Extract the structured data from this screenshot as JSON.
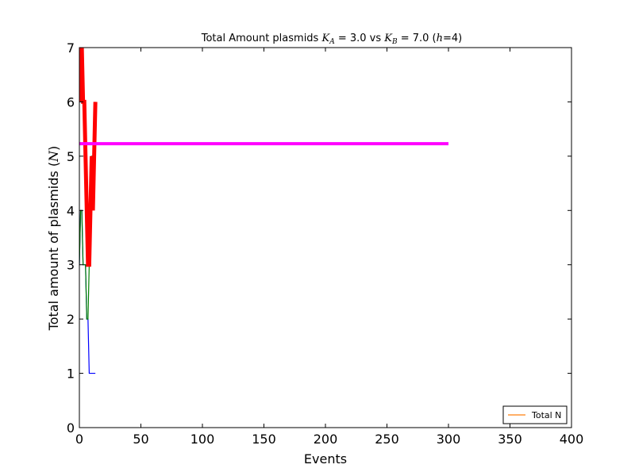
{
  "chart_data": {
    "type": "line",
    "title": {
      "prefix": "Total Amount plasmids ",
      "ka_symbol": "K",
      "ka_sub": "A",
      "ka_value": " = 3.0 vs ",
      "kb_symbol": "K",
      "kb_sub": "B",
      "kb_value": " = 7.0 (",
      "h_symbol": "h",
      "h_value": "=4)"
    },
    "xlabel": "Events",
    "ylabel_prefix": "Total amount of plasmids (",
    "ylabel_symbol": "N",
    "ylabel_suffix": ")",
    "xlim": [
      0,
      400
    ],
    "ylim": [
      0,
      7
    ],
    "xticks": [
      "0",
      "50",
      "100",
      "150",
      "200",
      "250",
      "300",
      "350",
      "400"
    ],
    "yticks": [
      "0",
      "1",
      "2",
      "3",
      "4",
      "5",
      "6",
      "7"
    ],
    "grid": false,
    "legend_position": "lower-right",
    "legend": [
      {
        "label": "Total N",
        "color": "#ff7f0e"
      }
    ],
    "series": [
      {
        "color": "#0000ff",
        "width": 1.2,
        "x": [
          0,
          1,
          2,
          3,
          4,
          5,
          6,
          7,
          8,
          9,
          10,
          11,
          12,
          13
        ],
        "y": [
          3,
          4,
          4,
          3,
          3,
          3,
          2,
          2,
          1,
          1,
          1,
          1,
          1,
          1
        ]
      },
      {
        "color": "#008000",
        "width": 1.2,
        "x": [
          0,
          1,
          2,
          3,
          4,
          5,
          6,
          7,
          8,
          9,
          10,
          11,
          12,
          13
        ],
        "y": [
          3,
          4,
          4,
          3,
          3,
          3,
          2,
          2,
          3,
          4,
          5,
          5,
          5,
          6
        ]
      },
      {
        "color": "#ff0000",
        "width": 5,
        "x": [
          0,
          1,
          2,
          3,
          4,
          5,
          6,
          7,
          8,
          9,
          10,
          11,
          12,
          13
        ],
        "y": [
          6,
          7,
          7,
          6,
          6,
          5,
          4,
          3,
          3,
          4,
          5,
          4,
          5,
          6
        ]
      },
      {
        "color": "#ff00ff",
        "width": 4,
        "x": [
          0,
          300
        ],
        "y": [
          5.23,
          5.23
        ]
      }
    ]
  }
}
